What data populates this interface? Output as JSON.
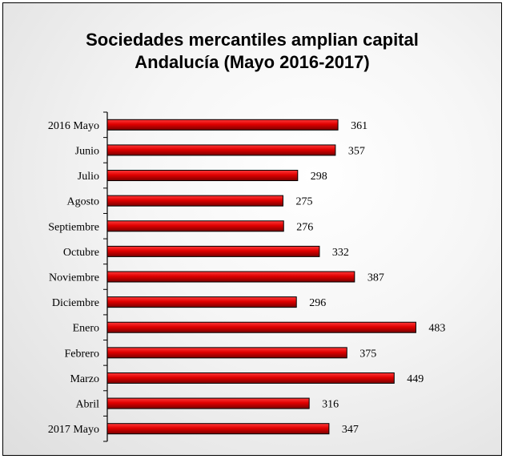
{
  "chart_data": {
    "type": "bar",
    "orientation": "horizontal",
    "title": "Sociedades mercantiles amplian capital",
    "subtitle": "Andalucía (Mayo 2016-2017)",
    "xlabel": "",
    "ylabel": "",
    "categories": [
      "2016 Mayo",
      "Junio",
      "Julio",
      "Agosto",
      "Septiembre",
      "Octubre",
      "Noviembre",
      "Diciembre",
      "Enero",
      "Febrero",
      "Marzo",
      "Abril",
      "2017 Mayo"
    ],
    "values": [
      361,
      357,
      298,
      275,
      276,
      332,
      387,
      296,
      483,
      375,
      449,
      316,
      347
    ],
    "xlim": [
      0,
      520
    ],
    "bar_color": "#e00000",
    "bar_border": "#000000",
    "grid": false,
    "legend": "none"
  }
}
